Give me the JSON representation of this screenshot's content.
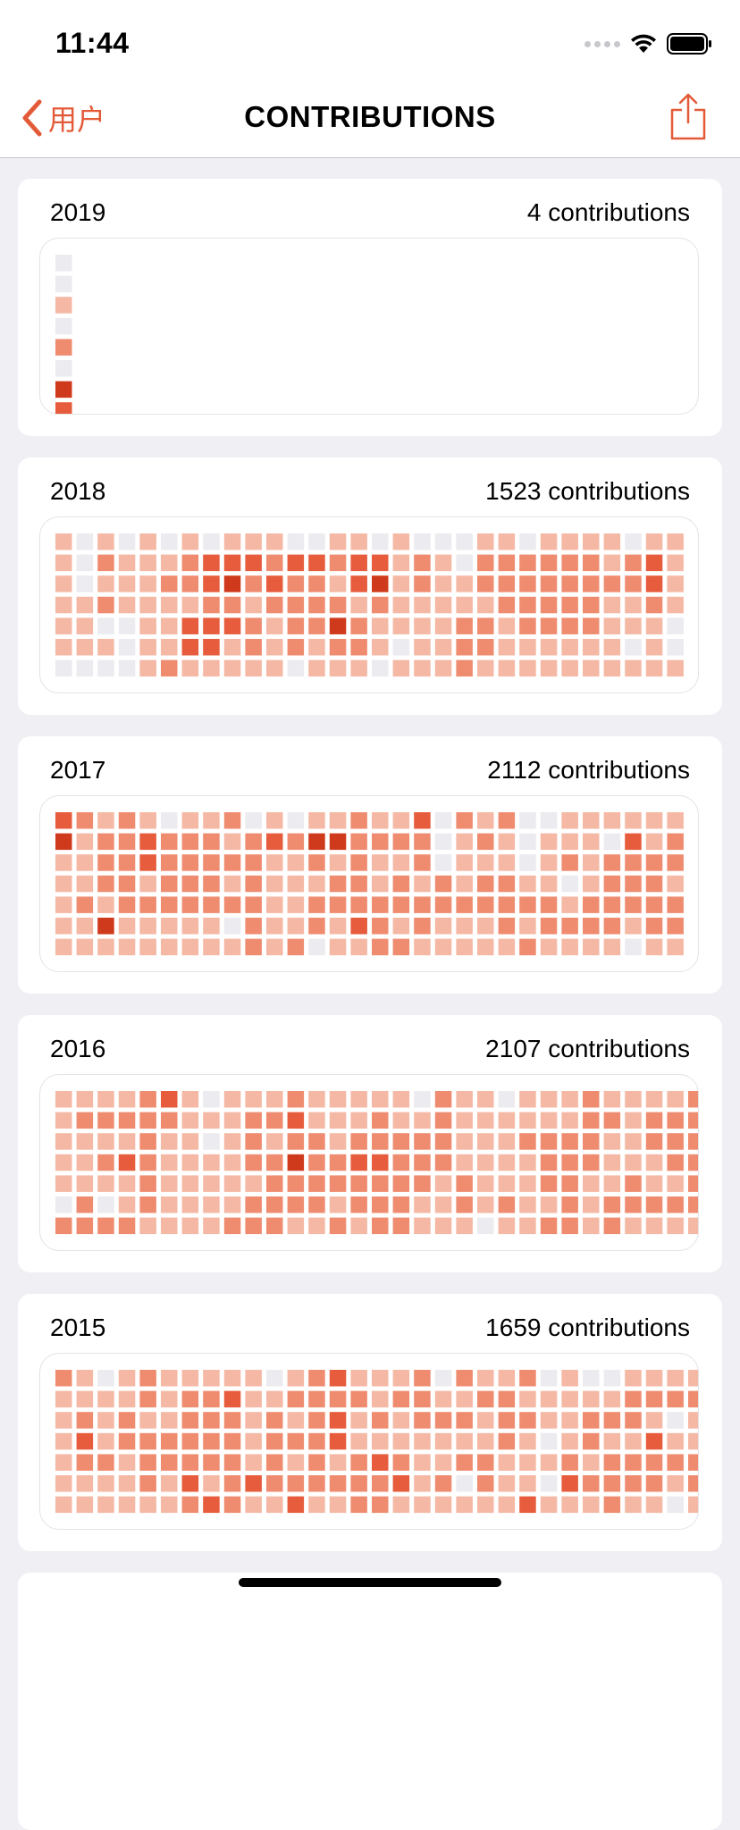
{
  "status": {
    "time": "11:44"
  },
  "nav": {
    "back_label": "用户",
    "title": "CONTRIBUTIONS"
  },
  "colors": {
    "accent": "#e35a38",
    "levels": [
      "#ebebf0",
      "#f5b8a5",
      "#ef8c70",
      "#e65c3c",
      "#d03a1c"
    ]
  },
  "cards": [
    {
      "year": "2019",
      "count": "4 contributions",
      "weeks": [
        "001020430"
      ]
    },
    {
      "year": "2018",
      "count": "1523 contributions",
      "weeks": [
        "1111110",
        "0001110",
        "1212010",
        "0111000",
        "1111111",
        "0121112",
        "1221331",
        "0332331",
        "1342311",
        "1321221",
        "1232111",
        "0322220",
        "0322211",
        "1212421",
        "1331221",
        "0342110",
        "1111101",
        "0221111",
        "0111111",
        "0011222",
        "1221221",
        "1222111",
        "0222211",
        "1222211",
        "1222211",
        "1222211",
        "1121111",
        "0221101",
        "1332111",
        "1111001"
      ]
    },
    {
      "year": "2017",
      "count": "2112 contributions",
      "weeks": [
        "3411111",
        "2111211",
        "1222141",
        "2222211",
        "1331211",
        "0222211",
        "1222211",
        "1222211",
        "2121201",
        "0222222",
        "1311111",
        "0211112",
        "1421220",
        "1412211",
        "2222231",
        "1211222",
        "1212212",
        "3221221",
        "0002211",
        "2111211",
        "1212211",
        "2112221",
        "0001212",
        "0111221",
        "1120121",
        "1111221",
        "1022221",
        "1322210",
        "1122221",
        "1221221"
      ]
    },
    {
      "year": "2016",
      "count": "2107 contributions",
      "weeks": [
        "1111102",
        "1211122",
        "1212102",
        "1213112",
        "2222221",
        "3211111",
        "1111111",
        "0101111",
        "1111112",
        "1222122",
        "1212222",
        "2324221",
        "1122221",
        "1112212",
        "1123221",
        "1223222",
        "1122222",
        "0122211",
        "2222111",
        "1111221",
        "1111110",
        "0111121",
        "1121111",
        "1122212",
        "1122222",
        "2222111",
        "1211122",
        "1111221",
        "1221121",
        "1222121",
        "2222221"
      ]
    },
    {
      "year": "2015",
      "count": "1659 contributions",
      "weeks": [
        "2111111",
        "1123211",
        "0111211",
        "1122111",
        "2212221",
        "1112211",
        "1222232",
        "1222213",
        "1322222",
        "1111131",
        "0122221",
        "1212123",
        "2222221",
        "3233121",
        "1211222",
        "1121322",
        "1211231",
        "2221111",
        "0121121",
        "2121201",
        "1211221",
        "1222111",
        "2121113",
        "0110101",
        "1111231",
        "0122121",
        "0121222",
        "1221221",
        "1213221",
        "1201210",
        "1211221"
      ]
    }
  ]
}
